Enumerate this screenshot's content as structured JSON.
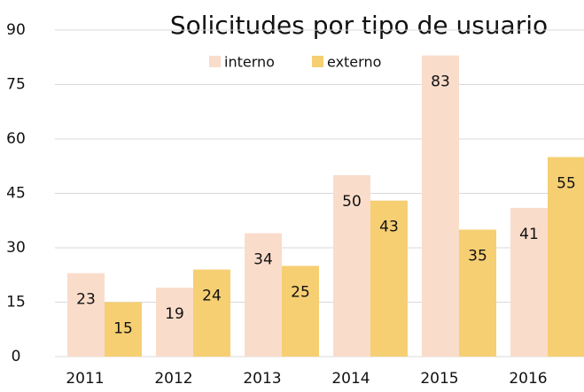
{
  "chart_data": {
    "type": "bar",
    "title": "Solicitudes por tipo de usuario",
    "categories": [
      "2011",
      "2012",
      "2013",
      "2014",
      "2015",
      "2016"
    ],
    "series": [
      {
        "name": "interno",
        "color": "#fadccb",
        "values": [
          23,
          19,
          34,
          50,
          83,
          41
        ]
      },
      {
        "name": "externo",
        "color": "#f6cf72",
        "values": [
          15,
          24,
          25,
          43,
          35,
          55
        ]
      }
    ],
    "ylim": [
      0,
      90
    ],
    "yticks": [
      0,
      15,
      30,
      45,
      60,
      75,
      90
    ],
    "grid": true,
    "legend": "top"
  }
}
